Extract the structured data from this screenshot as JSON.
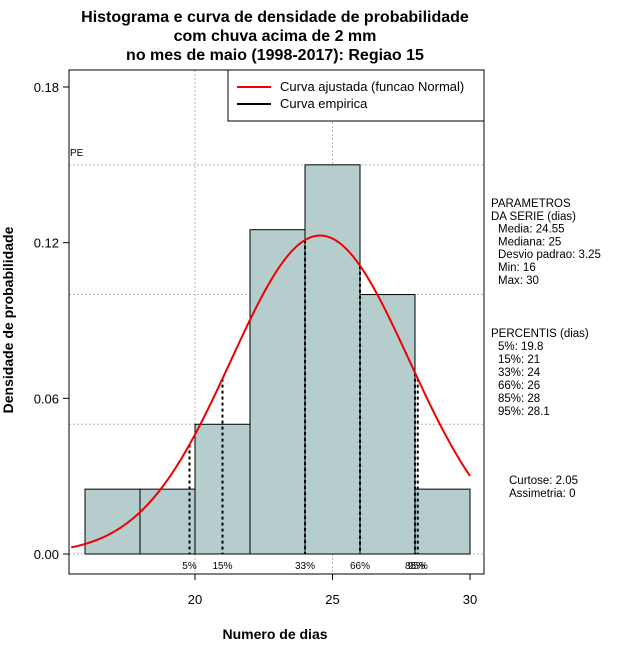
{
  "chart_data": {
    "type": "histogram",
    "title_lines": [
      "Histograma e curva de densidade de probabilidade",
      "com chuva acima de 2 mm",
      "no mes de maio (1998-2017): Regiao 15"
    ],
    "xlabel": "Numero de dias",
    "ylabel": "Densidade de probabilidade",
    "xlim": [
      15.5,
      30
    ],
    "ylim": [
      0,
      0.18
    ],
    "x_ticks": [
      20,
      25,
      30
    ],
    "y_ticks": [
      0.0,
      0.06,
      0.12,
      0.18
    ],
    "y_tick_labels": [
      "0.00",
      "0.06",
      "0.12",
      "0.18"
    ],
    "bins": [
      {
        "from": 16,
        "to": 18,
        "density": 0.025
      },
      {
        "from": 18,
        "to": 20,
        "density": 0.025
      },
      {
        "from": 20,
        "to": 22,
        "density": 0.05
      },
      {
        "from": 22,
        "to": 24,
        "density": 0.125
      },
      {
        "from": 24,
        "to": 26,
        "density": 0.15
      },
      {
        "from": 26,
        "to": 28,
        "density": 0.1
      },
      {
        "from": 28,
        "to": 30,
        "density": 0.025
      }
    ],
    "normal_fit": {
      "mean": 24.55,
      "sd": 3.25
    },
    "grid_y_lines": [
      0.05,
      0.1,
      0.15
    ],
    "grid_x_lines": [
      20,
      25
    ],
    "pe_label": "PE",
    "legend": [
      {
        "label": "Curva ajustada (funcao Normal)",
        "color": "#ee0000"
      },
      {
        "label": "Curva empirica",
        "color": "#000000"
      }
    ],
    "percentile_markers": [
      {
        "label": "5%",
        "x": 19.8
      },
      {
        "label": "15%",
        "x": 21
      },
      {
        "label": "33%",
        "x": 24
      },
      {
        "label": "66%",
        "x": 26
      },
      {
        "label": "85%",
        "x": 28
      },
      {
        "label": "95%",
        "x": 28.1
      }
    ],
    "params_lines": [
      "PARAMETROS",
      "DA SERIE (dias)",
      "Media: 24.55",
      "Mediana: 25",
      "Desvio padrao: 3.25",
      "Min: 16",
      "Max: 30"
    ],
    "percentis_lines": [
      "PERCENTIS (dias)",
      "5%: 19.8",
      "15%: 21",
      "33%: 24",
      "66%: 26",
      "85%: 28",
      "95%: 28.1"
    ],
    "shape_lines": [
      "Curtose: 2.05",
      "Assimetria: 0"
    ],
    "colors": {
      "bar_fill": "#b5cecd",
      "curve": "#ee0000",
      "grid": "#b3b3b3"
    }
  }
}
